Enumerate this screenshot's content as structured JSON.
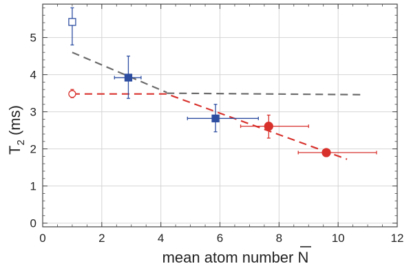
{
  "chart_data": {
    "type": "scatter",
    "xlabel": "mean atom number N",
    "xlabel_overline": "N",
    "ylabel": "T2 (ms)",
    "xlim": [
      0,
      12
    ],
    "ylim": [
      -0.1,
      5.9
    ],
    "grid": true,
    "x_ticks": [
      0,
      2,
      4,
      6,
      8,
      10,
      12
    ],
    "x_tick_labels": [
      "0",
      "2",
      "4",
      "6",
      "8",
      "10",
      "12"
    ],
    "y_ticks": [
      0,
      1,
      2,
      3,
      4,
      5
    ],
    "y_tick_labels": [
      "0",
      "1",
      "2",
      "3",
      "4",
      "5"
    ],
    "series": [
      {
        "marker": "square",
        "color": "#2c4da0",
        "points": [
          {
            "x": 1.0,
            "y": 5.42,
            "xerr_low": 0.0,
            "xerr_high": 0.0,
            "yerr_low": 0.62,
            "yerr_high": 0.38,
            "filled": false
          },
          {
            "x": 2.9,
            "y": 3.92,
            "xerr_low": 0.47,
            "xerr_high": 0.43,
            "yerr_low": 0.56,
            "yerr_high": 0.58,
            "filled": true
          },
          {
            "x": 5.85,
            "y": 2.82,
            "xerr_low": 0.95,
            "xerr_high": 1.45,
            "yerr_low": 0.36,
            "yerr_high": 0.38,
            "filled": true
          }
        ]
      },
      {
        "marker": "circle",
        "color": "#d8312c",
        "points": [
          {
            "x": 1.0,
            "y": 3.48,
            "xerr_low": 0.0,
            "xerr_high": 0.0,
            "yerr_low": 0.1,
            "yerr_high": 0.12,
            "filled": false
          },
          {
            "x": 7.65,
            "y": 2.61,
            "xerr_low": 0.95,
            "xerr_high": 1.35,
            "yerr_low": 0.32,
            "yerr_high": 0.3,
            "filled": true
          },
          {
            "x": 9.6,
            "y": 1.9,
            "xerr_low": 0.95,
            "xerr_high": 1.7,
            "yerr_low": 0.0,
            "yerr_high": 0.0,
            "filled": true
          }
        ]
      }
    ],
    "fit_lines": [
      {
        "style": "dashed",
        "color": "#6b6b6b",
        "x": [
          1.0,
          4.2
        ],
        "y": [
          4.6,
          3.52
        ]
      },
      {
        "style": "dashed",
        "color": "#6b6b6b",
        "x": [
          4.2,
          10.8
        ],
        "y": [
          3.5,
          3.46
        ]
      },
      {
        "style": "dashed",
        "color": "#d8312c",
        "x": [
          1.0,
          4.2,
          10.3
        ],
        "y": [
          3.48,
          3.48,
          1.72
        ]
      }
    ]
  }
}
